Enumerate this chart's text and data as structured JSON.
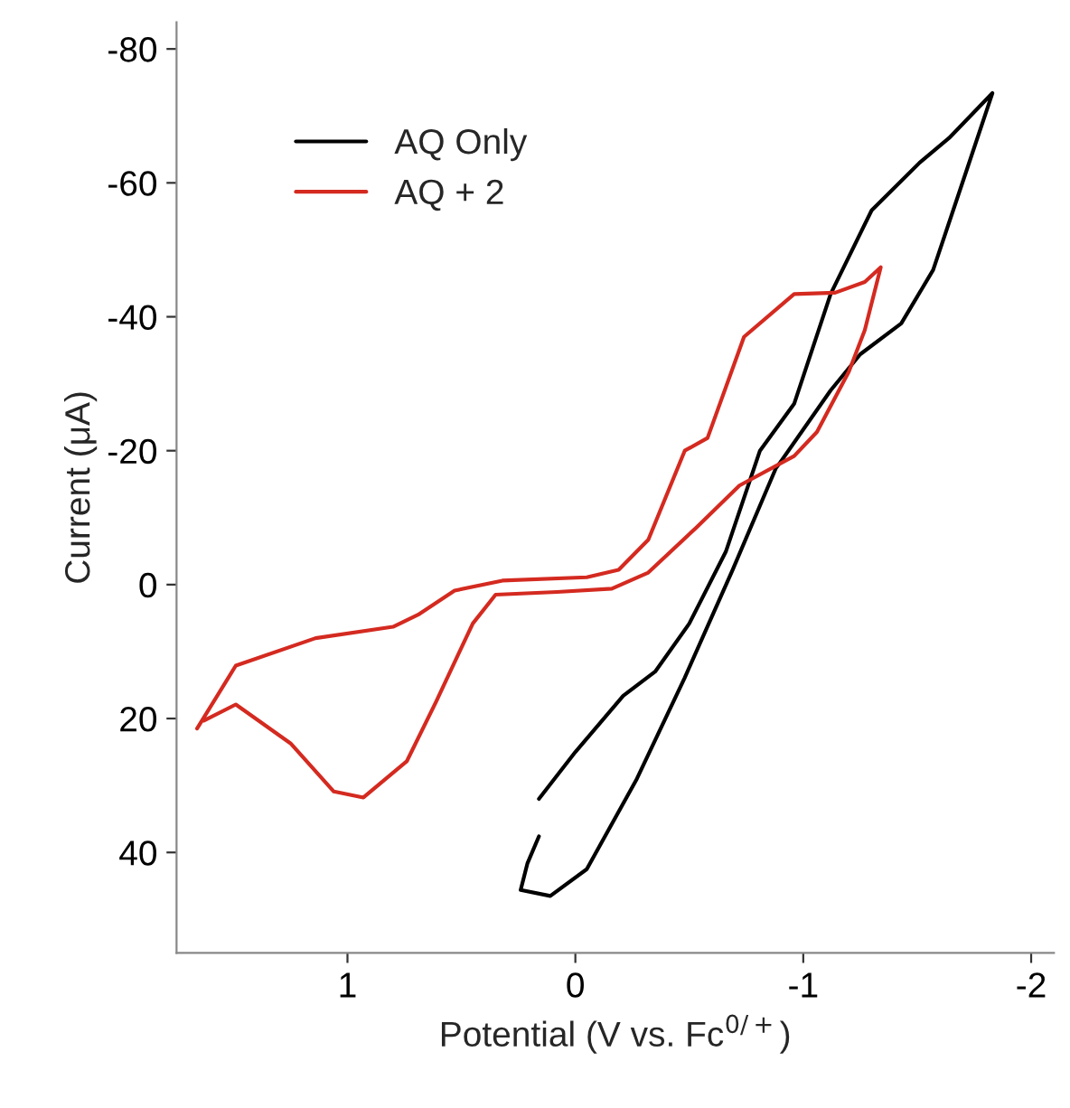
{
  "chart_data": {
    "type": "line",
    "xlabel": "Potential (V vs. Fc$^{0/+}$)",
    "ylabel": "Current (μA)",
    "xlim": [
      1.75,
      -2.1
    ],
    "xticks": [
      1,
      0,
      -1,
      -2
    ],
    "ylim": [
      55,
      -84
    ],
    "yticks": [
      40,
      20,
      0,
      -20,
      -40,
      -60,
      -80
    ],
    "legend": "top left",
    "grid": false,
    "marker": "none",
    "line_style": "solid",
    "series": [
      {
        "name": "AQ Only",
        "color": "#000000",
        "x": [
          0.16,
          0.0,
          -0.21,
          -0.35,
          -0.5,
          -0.66,
          -0.81,
          -0.96,
          -1.12,
          -1.3,
          -1.51,
          -1.64,
          -1.83,
          -1.72,
          -1.57,
          -1.43,
          -1.25,
          -1.12,
          -0.9,
          -0.88,
          -0.69,
          -0.48,
          -0.27,
          -0.05,
          0.11,
          0.24,
          0.21,
          0.16
        ],
        "values": [
          32,
          25,
          16.6,
          13,
          5.8,
          -4.9,
          -20,
          -27,
          -43.4,
          -55.9,
          -63,
          -66.7,
          -73.4,
          -62.2,
          -47,
          -39,
          -34.4,
          -29,
          -18.3,
          -17.4,
          -2.2,
          13.9,
          29,
          42.5,
          46.5,
          45.6,
          41.6,
          37.6
        ]
      },
      {
        "name": "AQ + 2",
        "color": "#d42a20",
        "x": [
          1.66,
          1.49,
          1.14,
          0.8,
          0.69,
          0.53,
          0.32,
          -0.05,
          -0.19,
          -0.32,
          -0.48,
          -0.58,
          -0.74,
          -0.96,
          -1.14,
          -1.27,
          -1.34,
          -1.27,
          -1.2,
          -1.06,
          -0.96,
          -0.72,
          -0.53,
          -0.32,
          -0.16,
          0.08,
          0.35,
          0.45,
          0.61,
          0.74,
          0.93,
          1.06,
          1.25,
          1.49,
          1.63
        ],
        "values": [
          21.5,
          12.1,
          8,
          6.3,
          4.5,
          0.9,
          -0.6,
          -1.1,
          -2.2,
          -6.7,
          -20,
          -21.9,
          -37,
          -43.4,
          -43.6,
          -45.2,
          -47.4,
          -38,
          -31.8,
          -22.8,
          -19.2,
          -14.8,
          -8.5,
          -1.8,
          0.6,
          1.1,
          1.5,
          5.8,
          17.4,
          26.4,
          31.8,
          30.9,
          23.7,
          17.9,
          20.3
        ]
      }
    ]
  }
}
